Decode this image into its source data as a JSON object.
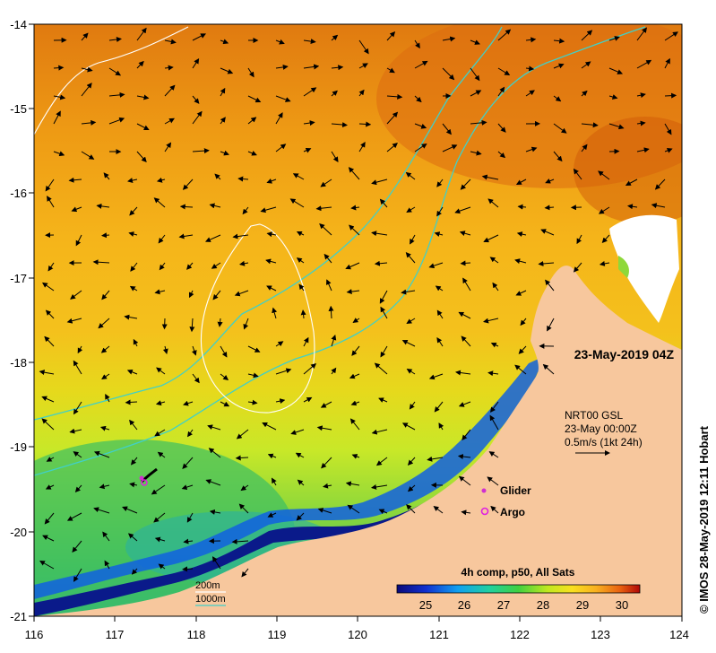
{
  "map": {
    "timestamp_label": "23-May-2019 04Z",
    "x_ticks": [
      "116",
      "117",
      "118",
      "119",
      "120",
      "121",
      "122",
      "123",
      "124"
    ],
    "y_ticks": [
      "-14",
      "-15",
      "-16",
      "-17",
      "-18",
      "-19",
      "-20",
      "-21"
    ],
    "credit": "© IMOS 28-May-2019 12:11 Hobart",
    "current_legend": {
      "line1": "NRT00 GSL",
      "line2": "23-May 00:00Z",
      "line3": "0.5m/s (1kt 24h)"
    },
    "markers": {
      "glider": "Glider",
      "argo": "Argo"
    },
    "isobaths": {
      "shallow": "200m",
      "deep": "1000m"
    },
    "colorbar": {
      "title": "4h comp, p50, All Sats",
      "ticks": [
        "25",
        "26",
        "27",
        "28",
        "29",
        "30"
      ]
    },
    "colors": {
      "land": "#f7c79d",
      "isobath_200": "#ffffff",
      "isobath_1000": "#40d0c8",
      "glider": "#d030d0",
      "argo": "#e020e0"
    }
  }
}
